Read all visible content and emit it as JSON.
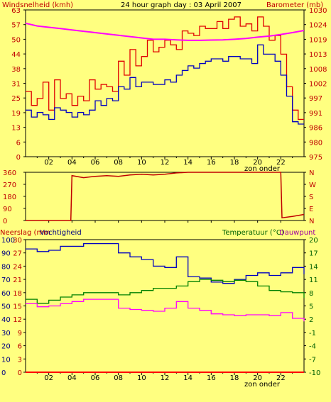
{
  "title": "24 hour graph day : 03 April 2007",
  "panel1": {
    "left_label": "Windsnelheid (kmh)",
    "right_label": "Barometer (mb)",
    "left_ticks": [
      "63",
      "57",
      "50",
      "44",
      "38",
      "31",
      "25",
      "19",
      "13",
      "6",
      "0"
    ],
    "right_ticks": [
      "1030",
      "1024",
      "1019",
      "1013",
      "1008",
      "1002",
      "997",
      "991",
      "986",
      "980",
      "975"
    ],
    "x_ticks": [
      "02",
      "04",
      "06",
      "08",
      "10",
      "12",
      "14",
      "16",
      "18",
      "20",
      "22"
    ],
    "zon_onder": "zon onder"
  },
  "panel2": {
    "left_ticks": [
      "360",
      "270",
      "180",
      "90",
      "0"
    ],
    "right_letters": [
      "N",
      "W",
      "S",
      "E",
      "N"
    ]
  },
  "panel3": {
    "label_neerslag": "Neerslag (mm",
    "label_vochtigheid": "Vochtigheid",
    "label_temperatuur": "Temperatuur (°C)",
    "label_dauwpunt": "Dauwpunt",
    "left_ticks_a": [
      "100",
      "90",
      "80",
      "70",
      "60",
      "50",
      "40",
      "30",
      "20",
      "10",
      "0"
    ],
    "left_ticks_b": [
      "30",
      "27",
      "24",
      "21",
      "18",
      "15",
      "12",
      "9",
      "6",
      "3",
      "0"
    ],
    "right_ticks": [
      "20",
      "17",
      "14",
      "11",
      "8",
      "5",
      "2",
      "-1",
      "-4",
      "-7",
      "-10"
    ],
    "x_ticks": [
      "02",
      "04",
      "06",
      "08",
      "10",
      "12",
      "14",
      "16",
      "18",
      "20",
      "22"
    ],
    "zon_onder": "zon onder"
  },
  "colors": {
    "background": "#ffff80",
    "gust": "#e00000",
    "wind": "#0000c0",
    "barometer": "#ff00ff",
    "direction": "#c00000",
    "humidity": "#0000c0",
    "temperature": "#008000",
    "dewpoint": "#ff00ff",
    "rain": "#ff0000"
  },
  "chart_data": [
    {
      "type": "line",
      "title": "24 hour graph day : 03 April 2007",
      "ylabel": "Windsnelheid (kmh)",
      "y2label": "Barometer (mb)",
      "xlim": [
        0,
        24
      ],
      "ylim": [
        0,
        63
      ],
      "y2lim": [
        975,
        1030
      ],
      "grid": false,
      "series": [
        {
          "key": "gust",
          "axis": "left",
          "x": [
            0,
            0.5,
            1,
            1.5,
            2,
            2.5,
            3,
            3.5,
            4,
            4.5,
            5,
            5.5,
            6,
            6.5,
            7,
            7.5,
            8,
            8.5,
            9,
            9.5,
            10,
            10.5,
            11,
            11.5,
            12,
            12.5,
            13,
            13.5,
            14,
            14.5,
            15,
            15.5,
            16,
            16.5,
            17,
            17.5,
            18,
            18.5,
            19,
            19.5,
            20,
            20.5,
            21,
            21.5,
            22,
            22.5,
            23,
            23.5
          ],
          "y": [
            28,
            22,
            25,
            32,
            20,
            33,
            25,
            27,
            22,
            26,
            24,
            33,
            29,
            31,
            30,
            28,
            41,
            35,
            46,
            39,
            43,
            50,
            45,
            47,
            50,
            48,
            46,
            54,
            53,
            52,
            56,
            55,
            55,
            58,
            55,
            59,
            60,
            56,
            57,
            54,
            60,
            56,
            50,
            52,
            44,
            30,
            20,
            16
          ]
        },
        {
          "key": "wind",
          "axis": "left",
          "x": [
            0,
            0.5,
            1,
            1.5,
            2,
            2.5,
            3,
            3.5,
            4,
            4.5,
            5,
            5.5,
            6,
            6.5,
            7,
            7.5,
            8,
            8.5,
            9,
            9.5,
            10,
            10.5,
            11,
            11.5,
            12,
            12.5,
            13,
            13.5,
            14,
            14.5,
            15,
            15.5,
            16,
            16.5,
            17,
            17.5,
            18,
            18.5,
            19,
            19.5,
            20,
            20.5,
            21,
            21.5,
            22,
            22.5,
            23,
            23.5
          ],
          "y": [
            20,
            17,
            19,
            18,
            16,
            21,
            20,
            19,
            17,
            19,
            18,
            20,
            24,
            22,
            25,
            24,
            30,
            29,
            34,
            30,
            32,
            32,
            31,
            31,
            33,
            32,
            35,
            37,
            39,
            38,
            40,
            41,
            42,
            42,
            41,
            43,
            43,
            42,
            42,
            40,
            48,
            44,
            44,
            41,
            35,
            26,
            15,
            14
          ]
        },
        {
          "key": "barometer",
          "axis": "right",
          "x": [
            0,
            1,
            2,
            3,
            4,
            5,
            6,
            7,
            8,
            9,
            10,
            11,
            12,
            13,
            14,
            15,
            16,
            17,
            18,
            19,
            20,
            21,
            22,
            23,
            24
          ],
          "y": [
            1025,
            1024,
            1023.5,
            1023,
            1022.5,
            1022,
            1021.5,
            1021,
            1020.5,
            1020,
            1019.5,
            1019,
            1019,
            1018.8,
            1018.6,
            1018.6,
            1018.7,
            1018.8,
            1019,
            1019.3,
            1019.8,
            1020.2,
            1020.8,
            1021.5,
            1022.3
          ]
        }
      ]
    },
    {
      "type": "line",
      "ylabel": "N W S E N",
      "xlim": [
        0,
        24
      ],
      "ylim": [
        0,
        360
      ],
      "grid": false,
      "series": [
        {
          "key": "direction",
          "x": [
            0,
            3.9,
            4,
            5,
            6,
            7,
            8,
            9,
            10,
            11,
            12,
            13,
            14,
            15,
            16,
            17,
            18,
            19,
            20,
            21,
            22,
            22.1,
            23,
            24
          ],
          "y": [
            0,
            0,
            335,
            320,
            330,
            335,
            330,
            340,
            345,
            340,
            345,
            355,
            360,
            360,
            360,
            360,
            360,
            360,
            360,
            360,
            360,
            20,
            30,
            45
          ]
        }
      ]
    },
    {
      "type": "line",
      "xlim": [
        0,
        24
      ],
      "ylim": [
        0,
        100
      ],
      "y2lim": [
        -10,
        20
      ],
      "grid": false,
      "series": [
        {
          "key": "humidity",
          "axis": "left",
          "x": [
            0,
            1,
            2,
            3,
            4,
            5,
            6,
            7,
            8,
            9,
            10,
            11,
            12,
            13,
            14,
            15,
            16,
            17,
            18,
            19,
            20,
            21,
            22,
            23,
            24
          ],
          "y": [
            93,
            91,
            92,
            95,
            95,
            97,
            97,
            97,
            90,
            87,
            85,
            80,
            79,
            87,
            72,
            71,
            68,
            67,
            70,
            73,
            75,
            73,
            75,
            79,
            74
          ]
        },
        {
          "key": "temperature",
          "axis": "right",
          "x": [
            0,
            1,
            2,
            3,
            4,
            5,
            6,
            7,
            8,
            9,
            10,
            11,
            12,
            13,
            14,
            15,
            16,
            17,
            18,
            19,
            20,
            21,
            22,
            23,
            24
          ],
          "y": [
            6.5,
            5.6,
            6.3,
            7,
            7.5,
            8,
            8,
            8,
            7.5,
            8,
            8.5,
            9,
            9,
            9.5,
            10.5,
            11,
            10.8,
            10.5,
            10.8,
            10.5,
            9.5,
            8.5,
            8.2,
            8,
            6.8
          ]
        },
        {
          "key": "dewpoint",
          "axis": "right",
          "x": [
            0,
            1,
            2,
            3,
            4,
            5,
            6,
            7,
            8,
            9,
            10,
            11,
            12,
            13,
            14,
            15,
            16,
            17,
            18,
            19,
            20,
            21,
            22,
            23,
            24
          ],
          "y": [
            5.5,
            4.8,
            5,
            5.5,
            6,
            6.5,
            6.5,
            6.5,
            4.5,
            4.2,
            4,
            3.8,
            4.5,
            6,
            4.5,
            4,
            3.2,
            3,
            2.8,
            3,
            3,
            2.8,
            3.5,
            2.2,
            1.5
          ]
        },
        {
          "key": "rain",
          "axis": "left",
          "x": [
            0,
            24
          ],
          "y": [
            0,
            0
          ]
        }
      ]
    }
  ]
}
